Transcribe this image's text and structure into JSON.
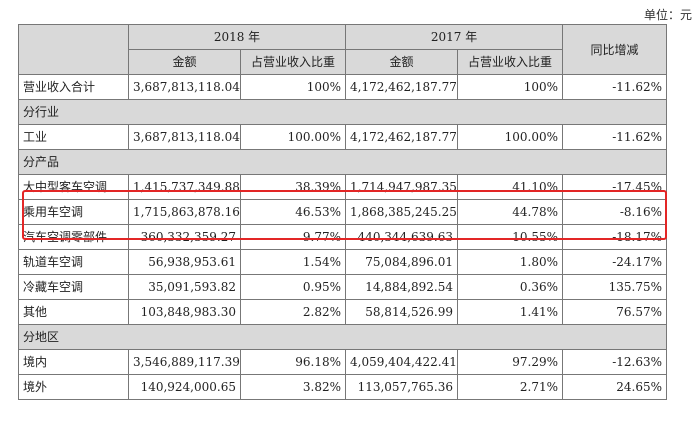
{
  "unit_label": "单位：元",
  "headers": {
    "year1": "2018 年",
    "year2": "2017 年",
    "yoy": "同比增减",
    "amount": "金额",
    "ratio": "占营业收入比重"
  },
  "total": {
    "label": "营业收入合计",
    "a2018": "3,687,813,118.04",
    "r2018": "100%",
    "a2017": "4,172,462,187.77",
    "r2017": "100%",
    "yoy": "-11.62%"
  },
  "sections": {
    "industry": "分行业",
    "product": "分产品",
    "region": "分地区"
  },
  "industry_rows": [
    {
      "label": "工业",
      "a2018": "3,687,813,118.04",
      "r2018": "100.00%",
      "a2017": "4,172,462,187.77",
      "r2017": "100.00%",
      "yoy": "-11.62%"
    }
  ],
  "product_rows": [
    {
      "label": "大中型客车空调",
      "a2018": "1,415,737,349.88",
      "r2018": "38.39%",
      "a2017": "1,714,947,987.35",
      "r2017": "41.10%",
      "yoy": "-17.45%"
    },
    {
      "label": "乘用车空调",
      "a2018": "1,715,863,878.16",
      "r2018": "46.53%",
      "a2017": "1,868,385,245.25",
      "r2017": "44.78%",
      "yoy": "-8.16%"
    },
    {
      "label": "汽车空调零部件",
      "a2018": "360,332,359.27",
      "r2018": "9.77%",
      "a2017": "440,344,639.63",
      "r2017": "10.55%",
      "yoy": "-18.17%"
    },
    {
      "label": "轨道车空调",
      "a2018": "56,938,953.61",
      "r2018": "1.54%",
      "a2017": "75,084,896.01",
      "r2017": "1.80%",
      "yoy": "-24.17%"
    },
    {
      "label": "冷藏车空调",
      "a2018": "35,091,593.82",
      "r2018": "0.95%",
      "a2017": "14,884,892.54",
      "r2017": "0.36%",
      "yoy": "135.75%"
    },
    {
      "label": "其他",
      "a2018": "103,848,983.30",
      "r2018": "2.82%",
      "a2017": "58,814,526.99",
      "r2017": "1.41%",
      "yoy": "76.57%"
    }
  ],
  "region_rows": [
    {
      "label": "境内",
      "a2018": "3,546,889,117.39",
      "r2018": "96.18%",
      "a2017": "4,059,404,422.41",
      "r2017": "97.29%",
      "yoy": "-12.63%"
    },
    {
      "label": "境外",
      "a2018": "140,924,000.65",
      "r2018": "3.82%",
      "a2017": "113,057,765.36",
      "r2017": "2.71%",
      "yoy": "24.65%"
    }
  ],
  "highlight_color": "#e32626"
}
